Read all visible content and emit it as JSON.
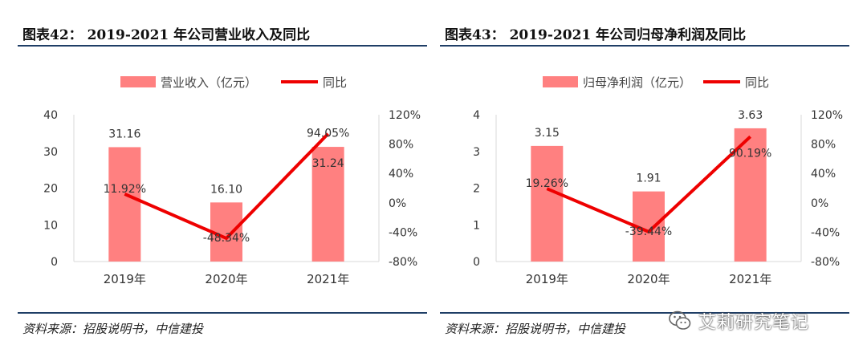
{
  "colors": {
    "bar": "#ff8080",
    "line": "#ee0000",
    "rule": "#1f3e66",
    "axis": "#d9d9d9"
  },
  "watermark": {
    "icon": "wechat-icon",
    "text": "艾莉研究笔记"
  },
  "chart_data": [
    {
      "type": "bar",
      "title": "图表42： 2019-2021 年公司营业收入及同比",
      "source": "资料来源：招股说明书，中信建投",
      "categories": [
        "2019年",
        "2020年",
        "2021年"
      ],
      "series": [
        {
          "name": "营业收入（亿元）",
          "type": "bar",
          "axis": "left",
          "values": [
            31.16,
            16.1,
            31.24
          ],
          "labels": [
            "31.16",
            "16.10",
            "31.24"
          ]
        },
        {
          "name": "同比",
          "type": "line",
          "axis": "right",
          "values": [
            11.92,
            -48.34,
            94.05
          ],
          "labels": [
            "11.92%",
            "-48.34%",
            "94.05%"
          ]
        }
      ],
      "y_left": {
        "min": 0,
        "max": 40,
        "ticks": [
          "0",
          "10",
          "20",
          "30",
          "40"
        ]
      },
      "y_right": {
        "min": -80,
        "max": 120,
        "ticks": [
          "-80%",
          "-40%",
          "0%",
          "40%",
          "80%",
          "120%"
        ]
      },
      "legend_position": "top-center",
      "grid": false
    },
    {
      "type": "bar",
      "title": "图表43： 2019-2021 年公司归母净利润及同比",
      "source": "资料来源：招股说明书，中信建投",
      "categories": [
        "2019年",
        "2020年",
        "2021年"
      ],
      "series": [
        {
          "name": "归母净利润（亿元）",
          "type": "bar",
          "axis": "left",
          "values": [
            3.15,
            1.91,
            3.63
          ],
          "labels": [
            "3.15",
            "1.91",
            "3.63"
          ]
        },
        {
          "name": "同比",
          "type": "line",
          "axis": "right",
          "values": [
            19.26,
            -39.44,
            90.19
          ],
          "labels": [
            "19.26%",
            "-39.44%",
            "90.19%"
          ]
        }
      ],
      "y_left": {
        "min": 0,
        "max": 4,
        "ticks": [
          "0",
          "1",
          "2",
          "3",
          "4"
        ]
      },
      "y_right": {
        "min": -80,
        "max": 120,
        "ticks": [
          "-80%",
          "-40%",
          "0%",
          "40%",
          "80%",
          "120%"
        ]
      },
      "legend_position": "top-center",
      "grid": false
    }
  ]
}
